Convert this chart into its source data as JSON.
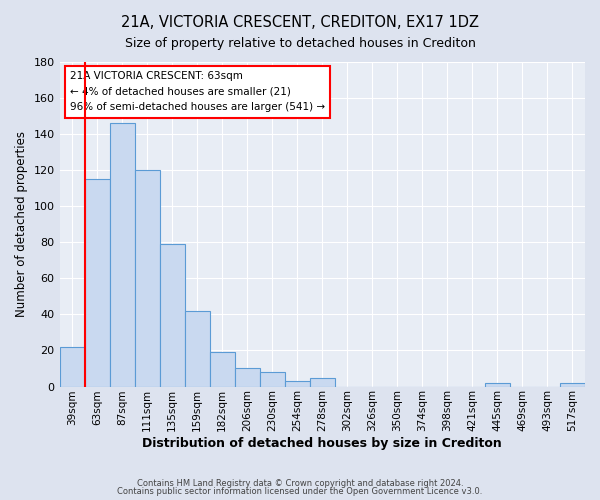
{
  "title": "21A, VICTORIA CRESCENT, CREDITON, EX17 1DZ",
  "subtitle": "Size of property relative to detached houses in Crediton",
  "xlabel": "Distribution of detached houses by size in Crediton",
  "ylabel": "Number of detached properties",
  "bar_labels": [
    "39sqm",
    "63sqm",
    "87sqm",
    "111sqm",
    "135sqm",
    "159sqm",
    "182sqm",
    "206sqm",
    "230sqm",
    "254sqm",
    "278sqm",
    "302sqm",
    "326sqm",
    "350sqm",
    "374sqm",
    "398sqm",
    "421sqm",
    "445sqm",
    "469sqm",
    "493sqm",
    "517sqm"
  ],
  "bar_values": [
    22,
    115,
    146,
    120,
    79,
    42,
    19,
    10,
    8,
    3,
    5,
    0,
    0,
    0,
    0,
    0,
    0,
    2,
    0,
    0,
    2
  ],
  "bar_color": "#c9d9f0",
  "bar_edge_color": "#5b9bd5",
  "ylim": [
    0,
    180
  ],
  "yticks": [
    0,
    20,
    40,
    60,
    80,
    100,
    120,
    140,
    160,
    180
  ],
  "property_size_index": 1,
  "annotation_title": "21A VICTORIA CRESCENT: 63sqm",
  "annotation_line1": "← 4% of detached houses are smaller (21)",
  "annotation_line2": "96% of semi-detached houses are larger (541) →",
  "footer_line1": "Contains HM Land Registry data © Crown copyright and database right 2024.",
  "footer_line2": "Contains public sector information licensed under the Open Government Licence v3.0.",
  "background_color": "#dde3ef",
  "plot_background_color": "#e8edf5"
}
